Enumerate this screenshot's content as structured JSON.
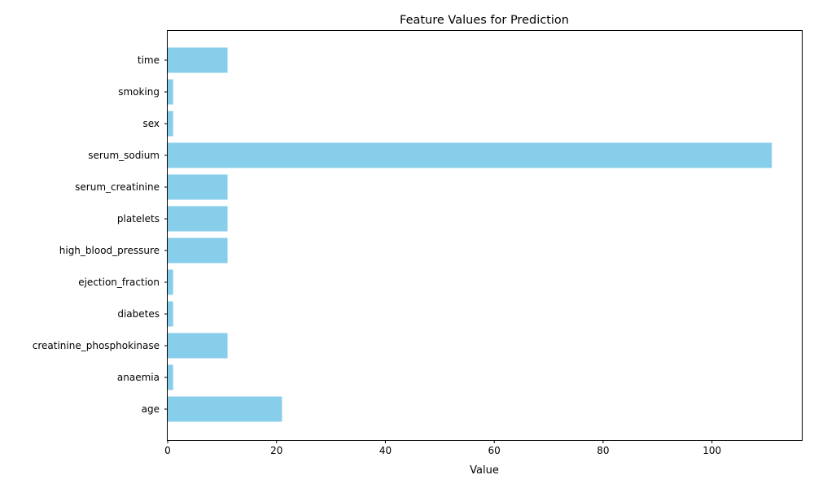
{
  "chart_data": {
    "type": "bar",
    "orientation": "horizontal",
    "title": "Feature Values for Prediction",
    "xlabel": "Value",
    "ylabel": "",
    "xlim": [
      0,
      116.5
    ],
    "xticks": [
      0,
      20,
      40,
      60,
      80,
      100
    ],
    "grid": false,
    "bar_color": "#87CEEB",
    "categories": [
      "age",
      "anaemia",
      "creatinine_phosphokinase",
      "diabetes",
      "ejection_fraction",
      "high_blood_pressure",
      "platelets",
      "serum_creatinine",
      "serum_sodium",
      "sex",
      "smoking",
      "time"
    ],
    "values": [
      21,
      1,
      11,
      1,
      1,
      11,
      11,
      11,
      111,
      1,
      1,
      11
    ]
  }
}
